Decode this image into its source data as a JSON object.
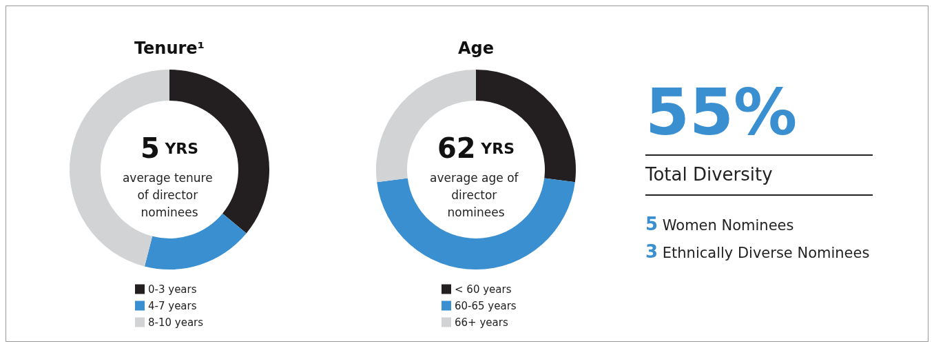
{
  "chart_data": [
    {
      "type": "donut",
      "title": "Tenure¹",
      "categories": [
        "0-3 years",
        "4-7 years",
        "8-10 years"
      ],
      "values": [
        36,
        18,
        46
      ],
      "colors": [
        "#231f20",
        "#3a8fd0",
        "#d1d3d4"
      ],
      "legend": "bottom",
      "annotations": [
        "5 YRS",
        "average tenure of director nominees"
      ]
    },
    {
      "type": "donut",
      "title": "Age",
      "categories": [
        "< 60 years",
        "60-65 years",
        "66+ years"
      ],
      "values": [
        27,
        46,
        27
      ],
      "colors": [
        "#231f20",
        "#3a8fd0",
        "#d1d3d4"
      ],
      "legend": "bottom",
      "annotations": [
        "62 YRS",
        "average age of director nominees"
      ]
    },
    {
      "type": "other",
      "title": "55%",
      "subtitle": "Total Diversity",
      "color": "#3a8fd0",
      "annotations": [
        "5 Women Nominees",
        "3 Ethnically Diverse Nominees"
      ]
    }
  ]
}
